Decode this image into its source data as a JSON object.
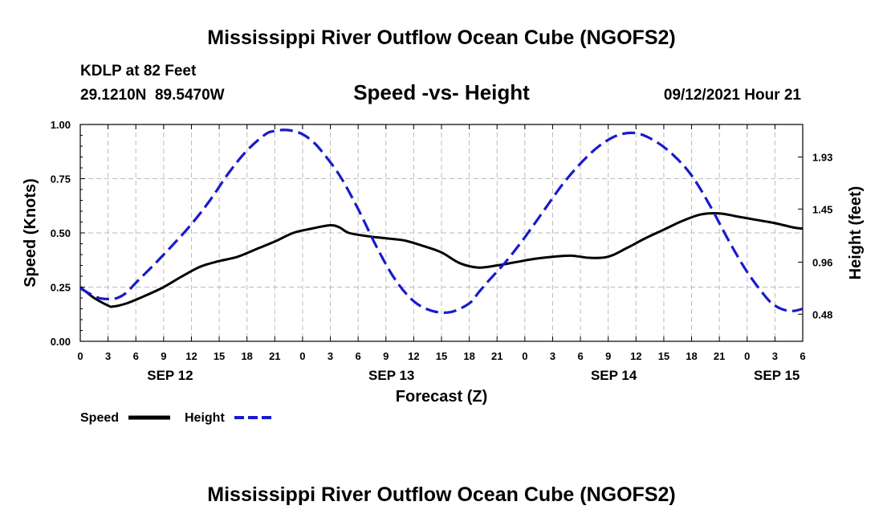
{
  "header": {
    "title": "Mississippi River Outflow Ocean Cube (NGOFS2)",
    "station": "KDLP at 82 Feet",
    "coords": "29.1210N  89.5470W",
    "timestamp": "09/12/2021 Hour 21",
    "footer_title": "Mississippi River Outflow Ocean Cube (NGOFS2)"
  },
  "colors": {
    "speed": "#000000",
    "height": "#1a1acc",
    "grid": "#bbbbbb"
  },
  "chart_data": {
    "type": "line",
    "title": "Speed -vs- Height",
    "xlabel": "Forecast (Z)",
    "ylabel_left": "Speed (Knots)",
    "ylabel_right": "Height (feet)",
    "x_range_hours": [
      0,
      78
    ],
    "x_tick_labels": [
      "0",
      "3",
      "6",
      "9",
      "12",
      "15",
      "18",
      "21",
      "0",
      "3",
      "6",
      "9",
      "12",
      "15",
      "18",
      "21",
      "0",
      "3",
      "6",
      "9",
      "12",
      "15",
      "18",
      "21",
      "0",
      "3",
      "6"
    ],
    "x_tick_hours": [
      0,
      3,
      6,
      9,
      12,
      15,
      18,
      21,
      24,
      27,
      30,
      33,
      36,
      39,
      42,
      45,
      48,
      51,
      54,
      57,
      60,
      63,
      66,
      69,
      72,
      75,
      78
    ],
    "day_labels": [
      {
        "label": "SEP 12",
        "hour": 9.7
      },
      {
        "label": "SEP 13",
        "hour": 33.6
      },
      {
        "label": "SEP 14",
        "hour": 57.6
      },
      {
        "label": "SEP 15",
        "hour": 75.2
      }
    ],
    "ylim_left": [
      0,
      1
    ],
    "y_ticks_left": [
      0.0,
      0.25,
      0.5,
      0.75,
      1.0
    ],
    "y_tick_labels_left": [
      "0.00",
      "0.25",
      "0.50",
      "0.75",
      "1.00"
    ],
    "ylim_right": [
      0.23,
      2.23
    ],
    "y_ticks_right": [
      0.48,
      0.96,
      1.45,
      1.93
    ],
    "y_tick_labels_right": [
      "0.48",
      "0.96",
      "1.45",
      "1.93"
    ],
    "grid": true,
    "legend": {
      "position": "bottom-left",
      "entries": [
        "Speed",
        "Height"
      ]
    },
    "series": [
      {
        "name": "Speed",
        "axis": "left",
        "style": "solid",
        "x": [
          0,
          1.5,
          3,
          3.5,
          5,
          7,
          9,
          11,
          13,
          15,
          17,
          19,
          21,
          23,
          25,
          27,
          28,
          29,
          31,
          33,
          35,
          37,
          39,
          41,
          43,
          45,
          47,
          49,
          51,
          53,
          55,
          57,
          59,
          61,
          63,
          65,
          67,
          69,
          71,
          73,
          75,
          77,
          78
        ],
        "y": [
          0.25,
          0.2,
          0.165,
          0.16,
          0.175,
          0.21,
          0.25,
          0.3,
          0.345,
          0.37,
          0.39,
          0.425,
          0.46,
          0.5,
          0.52,
          0.535,
          0.525,
          0.5,
          0.485,
          0.475,
          0.465,
          0.44,
          0.41,
          0.36,
          0.34,
          0.35,
          0.365,
          0.38,
          0.39,
          0.395,
          0.385,
          0.39,
          0.43,
          0.475,
          0.515,
          0.555,
          0.585,
          0.59,
          0.575,
          0.56,
          0.545,
          0.525,
          0.52
        ]
      },
      {
        "name": "Height",
        "axis": "right",
        "style": "dashed",
        "x": [
          0,
          1,
          2,
          3,
          4,
          5,
          6,
          8,
          10,
          12,
          14,
          16,
          18,
          20,
          21,
          22,
          23,
          24,
          25,
          26,
          28,
          30,
          32,
          34,
          36,
          38,
          40,
          42,
          43,
          44,
          46,
          48,
          50,
          52,
          54,
          56,
          58,
          60,
          62,
          64,
          66,
          68,
          70,
          72,
          74,
          75,
          76,
          77,
          78
        ],
        "y": [
          0.72,
          0.67,
          0.63,
          0.62,
          0.63,
          0.68,
          0.77,
          0.94,
          1.12,
          1.31,
          1.53,
          1.78,
          1.99,
          2.14,
          2.17,
          2.18,
          2.17,
          2.14,
          2.08,
          1.99,
          1.76,
          1.45,
          1.1,
          0.8,
          0.6,
          0.51,
          0.5,
          0.58,
          0.68,
          0.78,
          0.97,
          1.19,
          1.43,
          1.67,
          1.87,
          2.03,
          2.13,
          2.15,
          2.08,
          1.95,
          1.76,
          1.48,
          1.16,
          0.87,
          0.64,
          0.56,
          0.52,
          0.51,
          0.53
        ]
      }
    ]
  }
}
